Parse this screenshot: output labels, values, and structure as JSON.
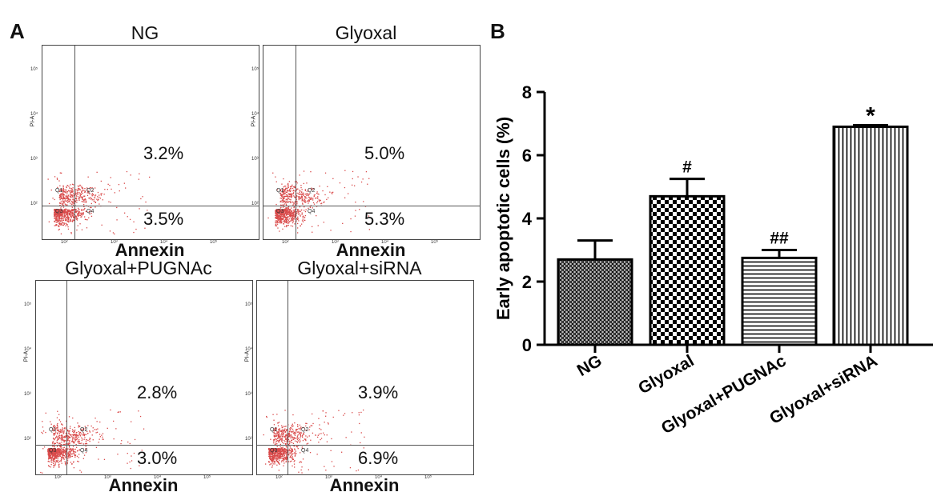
{
  "panel_a": {
    "letter": "A",
    "plots": [
      {
        "title": "NG",
        "upper_right": "3.2%",
        "lower_right": "3.5%",
        "xlabel": "Annexin",
        "ylabel": "PI-A"
      },
      {
        "title": "Glyoxal",
        "upper_right": "5.0%",
        "lower_right": "5.3%",
        "xlabel": "Annexin",
        "ylabel": "PI-A"
      },
      {
        "title": "Glyoxal+PUGNAc",
        "upper_right": "2.8%",
        "lower_right": "3.0%",
        "xlabel": "Annexin",
        "ylabel": "PI-A"
      },
      {
        "title": "Glyoxal+siRNA",
        "upper_right": "3.9%",
        "lower_right": "6.9%",
        "xlabel": "Annexin",
        "ylabel": "PI-A"
      }
    ],
    "quadrants": [
      "Q1",
      "Q2",
      "Q3",
      "Q4"
    ],
    "y_ticks": [
      "10⁵",
      "10⁴",
      "10³",
      "10²"
    ],
    "x_ticks": [
      "10²",
      "10³",
      "10⁴",
      "10⁵"
    ],
    "dot_color": "#d94a4a"
  },
  "chart_data": {
    "panel_letter": "B",
    "type": "bar",
    "categories": [
      "NG",
      "Glyoxal",
      "Glyoxal+PUGNAc",
      "Glyoxal+siRNA"
    ],
    "values": [
      2.7,
      4.7,
      2.75,
      6.9
    ],
    "errors": [
      0.6,
      0.55,
      0.25,
      0.05
    ],
    "annotations": [
      "",
      "#",
      "##",
      "*"
    ],
    "patterns": [
      "crosshatch-fine",
      "checkerboard",
      "horizontal-lines",
      "vertical-lines"
    ],
    "ylabel": "Early apoptotic cells (%)",
    "ylim": [
      0,
      8
    ],
    "yticks": [
      0,
      2,
      4,
      6,
      8
    ],
    "grid": false,
    "legend": "none"
  }
}
